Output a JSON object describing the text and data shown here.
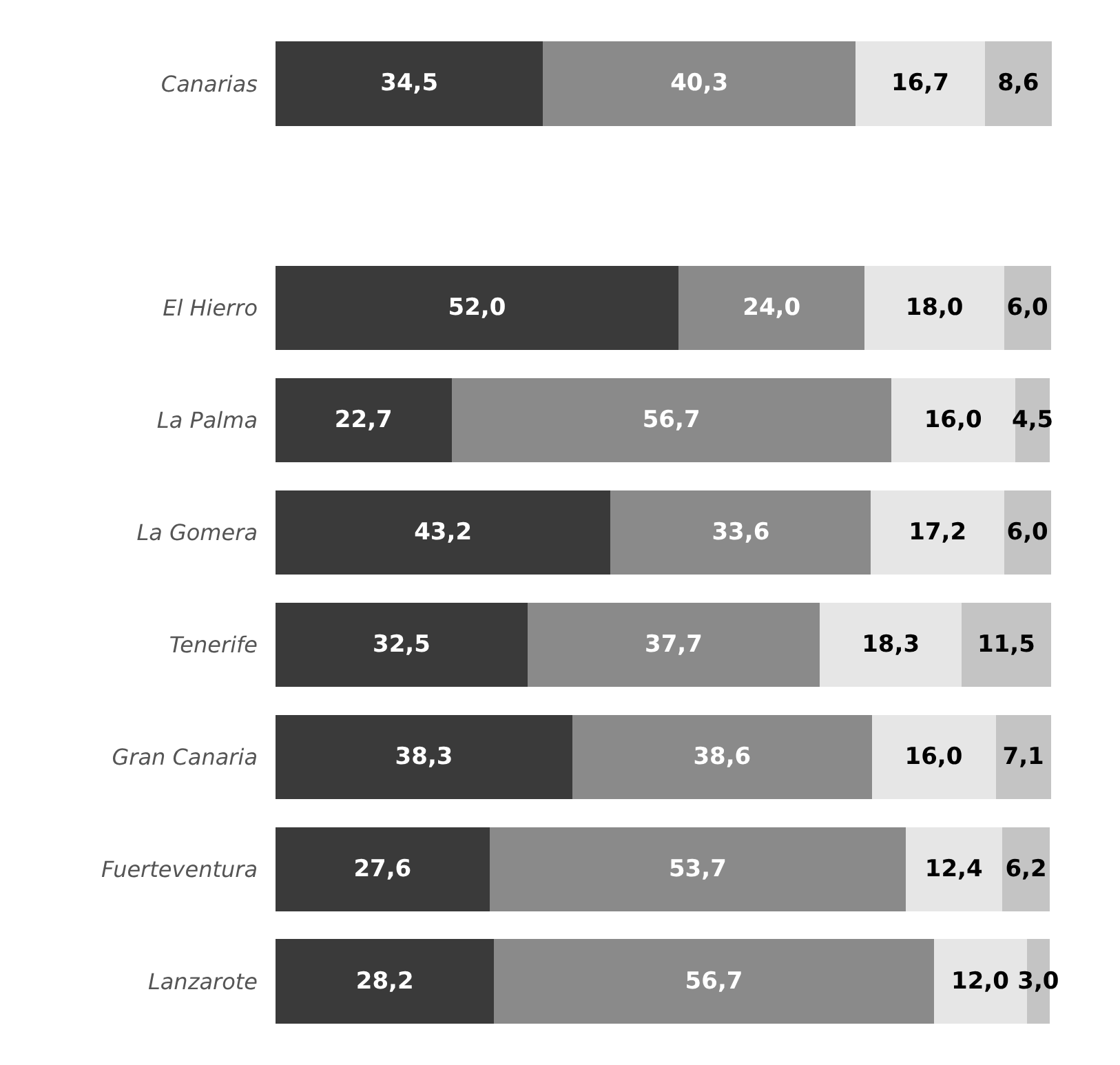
{
  "chart_data": {
    "type": "bar",
    "orientation": "horizontal",
    "stacked": true,
    "data_labels": true,
    "categories": [
      "Canarias",
      null,
      "El Hierro",
      "La Palma",
      "La Gomera",
      "Tenerife",
      "Gran Canaria",
      "Fuerteventura",
      "Lanzarote"
    ],
    "series": [
      {
        "color": "#3a3a3a",
        "values": [
          34.5,
          null,
          52.0,
          22.7,
          43.2,
          32.5,
          38.3,
          27.6,
          28.2
        ],
        "value_labels": [
          "34,5",
          null,
          "52,0",
          "22,7",
          "43,2",
          "32,5",
          "38,3",
          "27,6",
          "28,2"
        ]
      },
      {
        "color": "#8a8a8a",
        "values": [
          40.3,
          null,
          24.0,
          56.7,
          33.6,
          37.7,
          38.6,
          53.7,
          56.7
        ],
        "value_labels": [
          "40,3",
          null,
          "24,0",
          "56,7",
          "33,6",
          "37,7",
          "38,6",
          "53,7",
          "56,7"
        ]
      },
      {
        "color": "#e6e6e6",
        "values": [
          16.7,
          null,
          18.0,
          16.0,
          17.2,
          18.3,
          16.0,
          12.4,
          12.0
        ],
        "value_labels": [
          "16,7",
          null,
          "18,0",
          "16,0",
          "17,2",
          "18,3",
          "16,0",
          "12,4",
          "12,0"
        ]
      },
      {
        "color": "#c4c4c4",
        "values": [
          8.6,
          null,
          6.0,
          4.5,
          6.0,
          11.5,
          7.1,
          6.2,
          3.0
        ],
        "value_labels": [
          "8,6",
          null,
          "6,0",
          "4,5",
          "6,0",
          "11,5",
          "7,1",
          "6,2",
          "3,0"
        ]
      }
    ]
  }
}
